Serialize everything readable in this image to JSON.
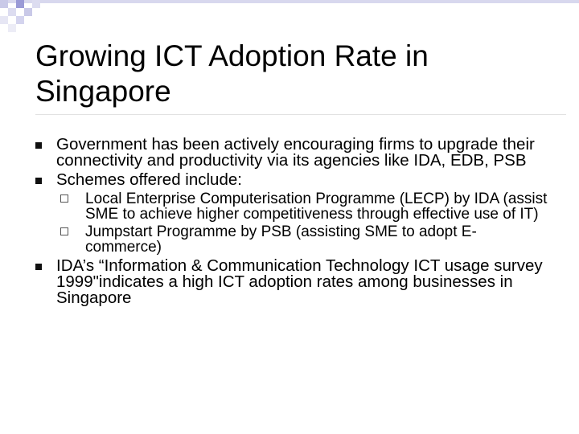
{
  "slide": {
    "title": "Growing ICT Adoption Rate in Singapore",
    "bullets": [
      {
        "text": "Government has been actively encouraging firms to upgrade their connectivity and productivity via its agencies like IDA, EDB, PSB"
      },
      {
        "text": "Schemes offered include:"
      },
      {
        "text": "IDA’s “Information & Communication Technology ICT usage survey 1999\"indicates a high ICT adoption rates among businesses in Singapore"
      }
    ],
    "subbullets": [
      {
        "text": "Local Enterprise Computerisation Programme (LECP) by IDA (assist SME to achieve higher competitiveness through effective use of IT)"
      },
      {
        "text": "Jumpstart Programme by PSB (assisting SME to adopt E-commerce)"
      }
    ]
  },
  "theme": {
    "accent": "#4a4aa8",
    "bullet": "#101010"
  }
}
